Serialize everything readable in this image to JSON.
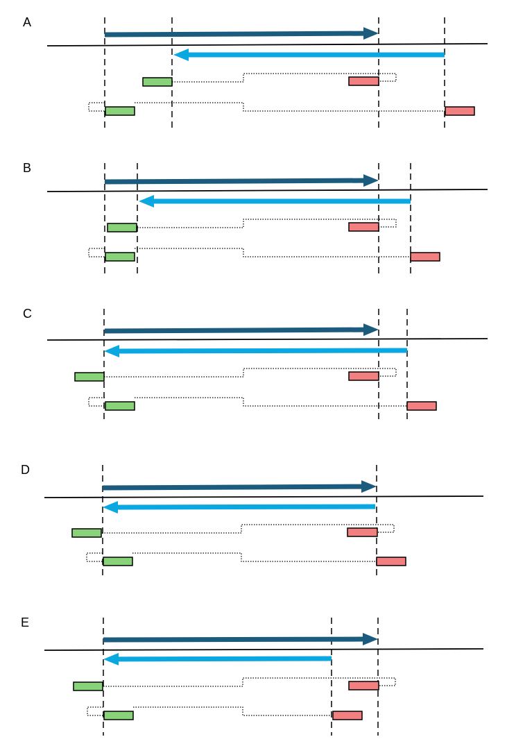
{
  "colors": {
    "forward_arrow": "#1b5b7e",
    "reverse_arrow": "#0aa7e0",
    "baseline": "#000000",
    "green_box": "#88d27a",
    "red_box": "#f28080",
    "box_border": "#000000",
    "guide_line": "#000000"
  },
  "panels": [
    {
      "label": "A"
    },
    {
      "label": "B"
    },
    {
      "label": "C"
    },
    {
      "label": "D"
    },
    {
      "label": "E"
    }
  ]
}
